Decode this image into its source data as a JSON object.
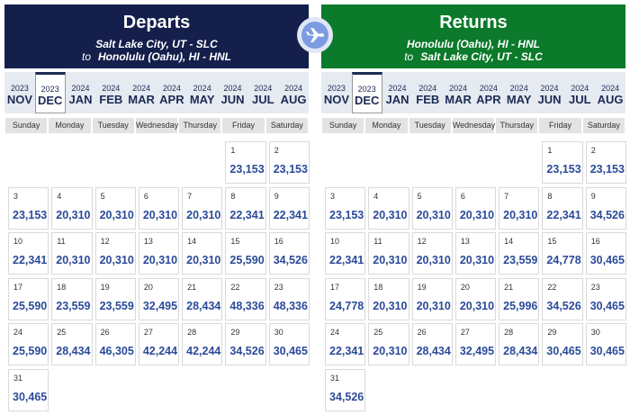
{
  "departs": {
    "title": "Departs",
    "from": "Salt Lake City, UT - SLC",
    "to_word": "to",
    "to": "Honolulu (Oahu), HI - HNL",
    "months": [
      {
        "year": "2023",
        "month": "NOV"
      },
      {
        "year": "2023",
        "month": "DEC"
      },
      {
        "year": "2024",
        "month": "JAN"
      },
      {
        "year": "2024",
        "month": "FEB"
      },
      {
        "year": "2024",
        "month": "MAR"
      },
      {
        "year": "2024",
        "month": "APR"
      },
      {
        "year": "2024",
        "month": "MAY"
      },
      {
        "year": "2024",
        "month": "JUN"
      },
      {
        "year": "2024",
        "month": "JUL"
      },
      {
        "year": "2024",
        "month": "AUG"
      }
    ],
    "weekdays": [
      "Sunday",
      "Monday",
      "Tuesday",
      "Wednesday",
      "Thursday",
      "Friday",
      "Saturday"
    ],
    "days": [
      {
        "day": 1,
        "price": "23,153"
      },
      {
        "day": 2,
        "price": "23,153"
      },
      {
        "day": 3,
        "price": "23,153"
      },
      {
        "day": 4,
        "price": "20,310"
      },
      {
        "day": 5,
        "price": "20,310"
      },
      {
        "day": 6,
        "price": "20,310"
      },
      {
        "day": 7,
        "price": "20,310"
      },
      {
        "day": 8,
        "price": "22,341"
      },
      {
        "day": 9,
        "price": "22,341"
      },
      {
        "day": 10,
        "price": "22,341"
      },
      {
        "day": 11,
        "price": "20,310"
      },
      {
        "day": 12,
        "price": "20,310"
      },
      {
        "day": 13,
        "price": "20,310"
      },
      {
        "day": 14,
        "price": "20,310"
      },
      {
        "day": 15,
        "price": "25,590"
      },
      {
        "day": 16,
        "price": "34,526"
      },
      {
        "day": 17,
        "price": "25,590"
      },
      {
        "day": 18,
        "price": "23,559"
      },
      {
        "day": 19,
        "price": "23,559"
      },
      {
        "day": 20,
        "price": "32,495"
      },
      {
        "day": 21,
        "price": "28,434"
      },
      {
        "day": 22,
        "price": "48,336"
      },
      {
        "day": 23,
        "price": "48,336"
      },
      {
        "day": 24,
        "price": "25,590"
      },
      {
        "day": 25,
        "price": "28,434"
      },
      {
        "day": 26,
        "price": "46,305"
      },
      {
        "day": 27,
        "price": "42,244"
      },
      {
        "day": 28,
        "price": "42,244"
      },
      {
        "day": 29,
        "price": "34,526"
      },
      {
        "day": 30,
        "price": "30,465"
      },
      {
        "day": 31,
        "price": "30,465"
      }
    ]
  },
  "returns": {
    "title": "Returns",
    "from": "Honolulu (Oahu), HI - HNL",
    "to_word": "to",
    "to": "Salt Lake City, UT - SLC",
    "months": [
      {
        "year": "2023",
        "month": "NOV"
      },
      {
        "year": "2023",
        "month": "DEC"
      },
      {
        "year": "2024",
        "month": "JAN"
      },
      {
        "year": "2024",
        "month": "FEB"
      },
      {
        "year": "2024",
        "month": "MAR"
      },
      {
        "year": "2024",
        "month": "APR"
      },
      {
        "year": "2024",
        "month": "MAY"
      },
      {
        "year": "2024",
        "month": "JUN"
      },
      {
        "year": "2024",
        "month": "JUL"
      },
      {
        "year": "2024",
        "month": "AUG"
      }
    ],
    "weekdays": [
      "Sunday",
      "Monday",
      "Tuesday",
      "Wednesday",
      "Thursday",
      "Friday",
      "Saturday"
    ],
    "days": [
      {
        "day": 1,
        "price": "23,153"
      },
      {
        "day": 2,
        "price": "23,153"
      },
      {
        "day": 3,
        "price": "23,153"
      },
      {
        "day": 4,
        "price": "20,310"
      },
      {
        "day": 5,
        "price": "20,310"
      },
      {
        "day": 6,
        "price": "20,310"
      },
      {
        "day": 7,
        "price": "20,310"
      },
      {
        "day": 8,
        "price": "22,341"
      },
      {
        "day": 9,
        "price": "34,526"
      },
      {
        "day": 10,
        "price": "22,341"
      },
      {
        "day": 11,
        "price": "20,310"
      },
      {
        "day": 12,
        "price": "20,310"
      },
      {
        "day": 13,
        "price": "20,310"
      },
      {
        "day": 14,
        "price": "23,559"
      },
      {
        "day": 15,
        "price": "24,778"
      },
      {
        "day": 16,
        "price": "30,465"
      },
      {
        "day": 17,
        "price": "24,778"
      },
      {
        "day": 18,
        "price": "20,310"
      },
      {
        "day": 19,
        "price": "20,310"
      },
      {
        "day": 20,
        "price": "20,310"
      },
      {
        "day": 21,
        "price": "25,996"
      },
      {
        "day": 22,
        "price": "34,526"
      },
      {
        "day": 23,
        "price": "30,465"
      },
      {
        "day": 24,
        "price": "22,341"
      },
      {
        "day": 25,
        "price": "20,310"
      },
      {
        "day": 26,
        "price": "28,434"
      },
      {
        "day": 27,
        "price": "32,495"
      },
      {
        "day": 28,
        "price": "28,434"
      },
      {
        "day": 29,
        "price": "30,465"
      },
      {
        "day": 30,
        "price": "30,465"
      },
      {
        "day": 31,
        "price": "34,526"
      }
    ]
  }
}
